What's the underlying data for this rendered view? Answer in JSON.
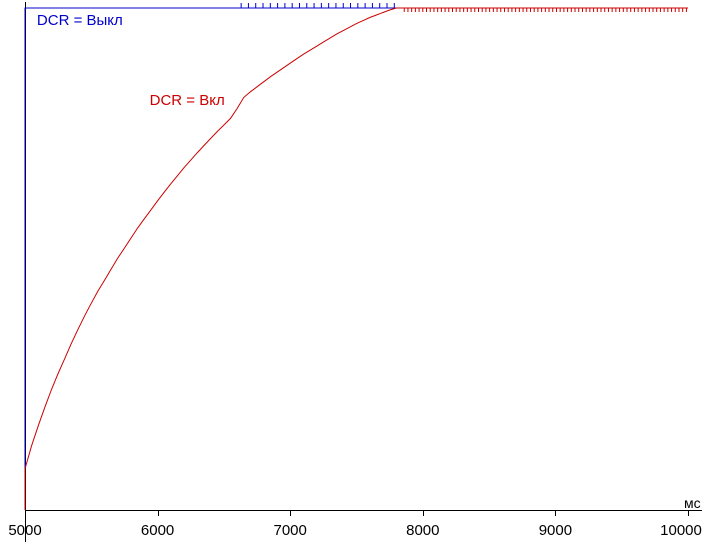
{
  "colors": {
    "background": "#ffffff",
    "axis": "#000000",
    "series_off": "#0000cc",
    "series_on": "#cc0000"
  },
  "chart_data": {
    "type": "line",
    "title": "",
    "xlabel": "мс",
    "ylabel": "",
    "xlim": [
      5000,
      10000
    ],
    "ylim": [
      0,
      1
    ],
    "grid": false,
    "legend_position": "inline-annotations",
    "x_ticks": [
      5000,
      6000,
      7000,
      8000,
      9000,
      10000
    ],
    "x_tick_labels": [
      "5000",
      "6000",
      "7000",
      "8000",
      "9000",
      "10000"
    ],
    "axis_unit_label": "мс",
    "series": [
      {
        "name": "DCR = Выкл",
        "color": "#0000cc",
        "points": [
          [
            5000,
            0
          ],
          [
            5000,
            1
          ],
          [
            10000,
            1
          ]
        ],
        "noise_ticks": {
          "from": 6630,
          "to": 7800,
          "step": 55,
          "dy": -5
        }
      },
      {
        "name": "DCR = Вкл",
        "color": "#cc0000",
        "points": [
          [
            5000,
            0.0
          ],
          [
            5000,
            0.082
          ],
          [
            5050,
            0.128
          ],
          [
            5100,
            0.168
          ],
          [
            5150,
            0.205
          ],
          [
            5200,
            0.24
          ],
          [
            5250,
            0.272
          ],
          [
            5300,
            0.302
          ],
          [
            5350,
            0.332
          ],
          [
            5400,
            0.36
          ],
          [
            5450,
            0.387
          ],
          [
            5500,
            0.412
          ],
          [
            5550,
            0.436
          ],
          [
            5600,
            0.458
          ],
          [
            5650,
            0.48
          ],
          [
            5700,
            0.502
          ],
          [
            5750,
            0.522
          ],
          [
            5800,
            0.542
          ],
          [
            5850,
            0.562
          ],
          [
            5900,
            0.58
          ],
          [
            5950,
            0.598
          ],
          [
            6000,
            0.616
          ],
          [
            6050,
            0.633
          ],
          [
            6100,
            0.65
          ],
          [
            6150,
            0.666
          ],
          [
            6200,
            0.682
          ],
          [
            6250,
            0.697
          ],
          [
            6300,
            0.712
          ],
          [
            6350,
            0.726
          ],
          [
            6400,
            0.74
          ],
          [
            6450,
            0.754
          ],
          [
            6500,
            0.767
          ],
          [
            6550,
            0.78
          ],
          [
            6600,
            0.8
          ],
          [
            6650,
            0.822
          ],
          [
            6700,
            0.833
          ],
          [
            6750,
            0.843
          ],
          [
            6800,
            0.853
          ],
          [
            6850,
            0.863
          ],
          [
            6900,
            0.872
          ],
          [
            6950,
            0.881
          ],
          [
            7000,
            0.89
          ],
          [
            7050,
            0.899
          ],
          [
            7100,
            0.908
          ],
          [
            7150,
            0.916
          ],
          [
            7200,
            0.924
          ],
          [
            7250,
            0.932
          ],
          [
            7300,
            0.94
          ],
          [
            7350,
            0.948
          ],
          [
            7400,
            0.955
          ],
          [
            7450,
            0.962
          ],
          [
            7500,
            0.969
          ],
          [
            7550,
            0.975
          ],
          [
            7600,
            0.981
          ],
          [
            7650,
            0.986
          ],
          [
            7700,
            0.991
          ],
          [
            7750,
            0.996
          ],
          [
            7800,
            1.0
          ],
          [
            10000,
            1.0
          ]
        ],
        "noise_ticks": {
          "from": 7860,
          "to": 9995,
          "step": 28,
          "dy": 4
        }
      }
    ],
    "annotations": [
      {
        "series": "DCR = Выкл",
        "text": "DCR = Выкл",
        "color": "#0000cc",
        "x": 5090,
        "y": 0.99
      },
      {
        "series": "DCR = Вкл",
        "text": "DCR = Вкл",
        "color": "#cc0000",
        "x": 5940,
        "y": 0.83
      }
    ]
  }
}
